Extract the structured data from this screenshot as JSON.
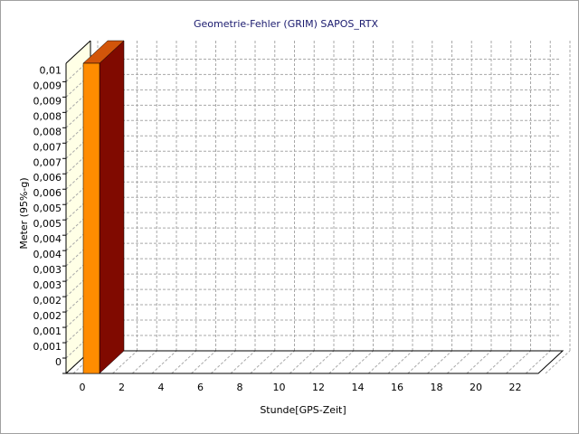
{
  "chart_data": {
    "type": "bar3d",
    "title": "Geometrie-Fehler (GRIM) SAPOS_RTX",
    "x_label": "Stunde[GPS-Zeit]",
    "y_label": "Meter (95%-g)",
    "categories": [
      "0",
      null,
      "2",
      null,
      "4",
      null,
      "6",
      null,
      "8",
      null,
      "10",
      null,
      "12",
      null,
      "14",
      null,
      "16",
      null,
      "18",
      null,
      "20",
      null,
      "22",
      null
    ],
    "values": [
      0.0101,
      0,
      0,
      0,
      0,
      0,
      0,
      0,
      0,
      0,
      0,
      0,
      0,
      0,
      0,
      0,
      0,
      0,
      0,
      0,
      0,
      0,
      0,
      0
    ],
    "color": "#ff8c00",
    "ylim": [
      0,
      0.0101
    ],
    "yticks": [
      0,
      {
        "value": 0.0005,
        "label": "0,001"
      },
      {
        "value": 0.001,
        "label": "0,001"
      },
      {
        "value": 0.0015,
        "label": "0,002"
      },
      {
        "value": 0.002,
        "label": "0,002"
      },
      {
        "value": 0.0025,
        "label": "0,003"
      },
      {
        "value": 0.003,
        "label": "0,003"
      },
      {
        "value": 0.0035,
        "label": "0,004"
      },
      {
        "value": 0.004,
        "label": "0,004"
      },
      {
        "value": 0.0045,
        "label": "0,005"
      },
      {
        "value": 0.005,
        "label": "0,005"
      },
      {
        "value": 0.0055,
        "label": "0,006"
      },
      {
        "value": 0.006,
        "label": "0,006"
      },
      {
        "value": 0.0065,
        "label": "0,007"
      },
      {
        "value": 0.007,
        "label": "0,007"
      },
      {
        "value": 0.0075,
        "label": "0,008"
      },
      {
        "value": 0.008,
        "label": "0,008"
      },
      {
        "value": 0.0085,
        "label": "0,009"
      },
      {
        "value": 0.009,
        "label": "0,009"
      },
      {
        "value": 0.0095,
        "label": "0,01"
      }
    ],
    "grid": true
  }
}
